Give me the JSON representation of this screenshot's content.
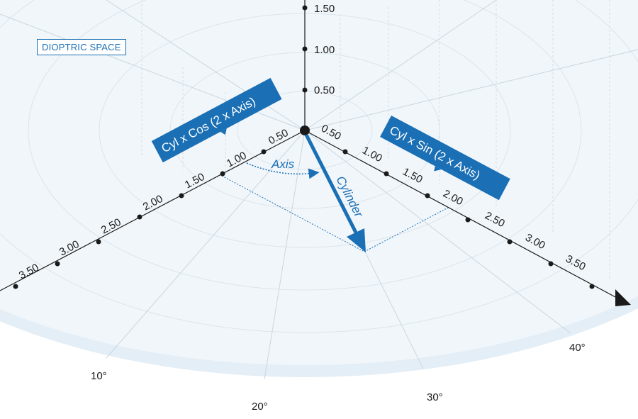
{
  "badge": "DIOPTRIC SPACE",
  "vertical_ticks": [
    "0.50",
    "1.00",
    "1.50"
  ],
  "left_ticks": [
    "0.50",
    "1.00",
    "1.50",
    "2.00",
    "2.50",
    "3.00",
    "3.50"
  ],
  "right_ticks": [
    "0.50",
    "1.00",
    "1.50",
    "2.00",
    "2.50",
    "3.00",
    "3.50"
  ],
  "degree_labels": [
    "10°",
    "20°",
    "30°",
    "40°"
  ],
  "arrows": {
    "cylinder": "Cylinder",
    "axis": "Axis"
  },
  "callouts": {
    "cos": "Cyl x Cos (2 x Axis)",
    "sin": "Cyl x Sin (2 x Axis)"
  },
  "colors": {
    "accent": "#1a6fb5",
    "disc": "#f1f6fa",
    "axis_line": "#1a1a1a"
  }
}
